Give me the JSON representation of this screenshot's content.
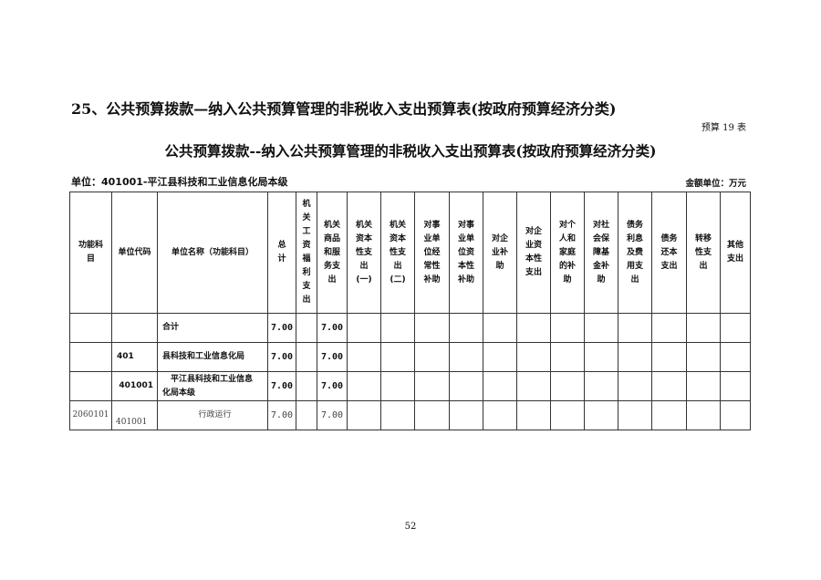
{
  "heading": "25、公共预算拨款—纳入公共预算管理的非税收入支出预算表(按政府预算经济分类)",
  "form_no": "预算 19 表",
  "table_title": "公共预算拨款--纳入公共预算管理的非税收入支出预算表(按政府预算经济分类)",
  "unit": "单位：401001-平江县科技和工业信息化局本级",
  "amount_unit": "金额单位：万元",
  "columns": [
    "功能科\n目",
    "单位代码",
    "单位名称（功能科目）",
    "总\n计",
    "机\n关\n工\n资\n福\n利\n支\n出",
    "机关\n商品\n和服\n务支\n出",
    "机关\n资本\n性支\n出\n(一)",
    "机关\n资本\n性支\n出\n(二)",
    "对事\n业单\n位经\n常性\n补助",
    "对事\n业单\n位资\n本性\n补助",
    "对企\n业补\n助",
    "对企\n业资\n本性\n支出",
    "对个\n人和\n家庭\n的补\n助",
    "对社\n会保\n障基\n金补\n助",
    "债务\n利息\n及费\n用支\n出",
    "债务\n还本\n支出",
    "转移\n性支\n出",
    "其他\n支出"
  ],
  "rows": [
    [
      "",
      "",
      "合计",
      "7.00",
      "",
      "7.00",
      "",
      "",
      "",
      "",
      "",
      "",
      "",
      "",
      "",
      "",
      "",
      ""
    ],
    [
      "",
      "401",
      "县科技和工业信息化局",
      "7.00",
      "",
      "7.00",
      "",
      "",
      "",
      "",
      "",
      "",
      "",
      "",
      "",
      "",
      "",
      ""
    ],
    [
      "",
      "401001",
      "　平江县科技和工业信息\n化局本级",
      "7.00",
      "",
      "7.00",
      "",
      "",
      "",
      "",
      "",
      "",
      "",
      "",
      "",
      "",
      "",
      ""
    ],
    [
      "2060101",
      "401001",
      "行政运行",
      "7.00",
      "",
      "7.00",
      "",
      "",
      "",
      "",
      "",
      "",
      "",
      "",
      "",
      "",
      "",
      ""
    ]
  ],
  "page_number": "52"
}
